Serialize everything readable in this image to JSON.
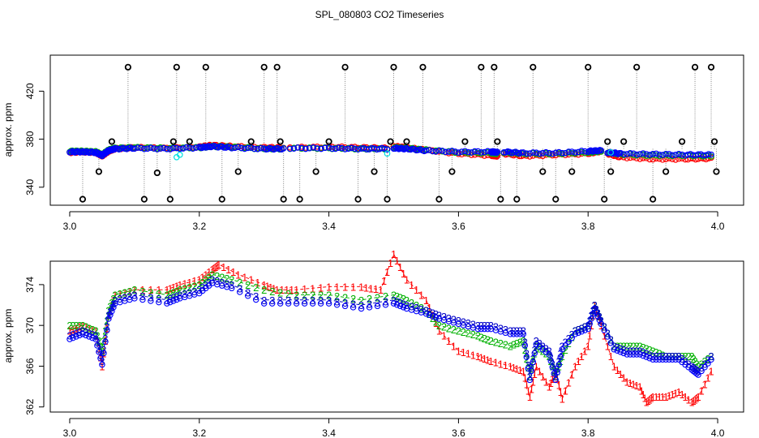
{
  "figure": {
    "title": "SPL_080803  CO2 Timeseries"
  },
  "chart_data": [
    {
      "type": "scatter",
      "panel": "top",
      "title": "",
      "xlabel": "",
      "ylabel": "approx. ppm",
      "xlim": [
        2.97,
        4.04
      ],
      "ylim": [
        325,
        450
      ],
      "x_ticks": [
        3.0,
        3.2,
        3.4,
        3.6,
        3.8,
        4.0
      ],
      "x_tick_labels": [
        "3.0",
        "3.2",
        "3.4",
        "3.6",
        "3.8",
        "4.0"
      ],
      "y_ticks": [
        340,
        380,
        420
      ],
      "y_tick_labels": [
        "340",
        "380",
        "420"
      ],
      "grid": false,
      "series": [
        {
          "name": "red",
          "color": "#ff0000",
          "marker": "circle",
          "segments": [
            {
              "x": [
                3.0,
                3.02,
                3.04,
                3.05,
                3.06,
                3.07,
                3.1,
                3.15,
                3.2,
                3.22,
                3.25,
                3.3,
                3.33
              ],
              "y": [
                369,
                369.5,
                369,
                366,
                370,
                372,
                373,
                372.5,
                373.5,
                375,
                374,
                373,
                373
              ]
            },
            {
              "x": [
                3.34,
                3.4,
                3.45,
                3.49
              ],
              "y": [
                373,
                373.5,
                373,
                372.5
              ]
            },
            {
              "x": [
                3.5,
                3.52,
                3.55,
                3.6,
                3.65,
                3.66
              ],
              "y": [
                374,
                373,
                371,
                368,
                366.5,
                366
              ]
            },
            {
              "x": [
                3.67,
                3.7,
                3.75,
                3.8,
                3.82
              ],
              "y": [
                368,
                366,
                367,
                368,
                370
              ]
            },
            {
              "x": [
                3.83,
                3.85,
                3.9,
                3.95,
                3.99
              ],
              "y": [
                368,
                365,
                363.5,
                363.5,
                364
              ]
            }
          ]
        },
        {
          "name": "green",
          "color": "#00b000",
          "marker": "circle",
          "segments": [
            {
              "x": [
                3.0,
                3.02,
                3.04,
                3.05,
                3.06,
                3.07,
                3.1,
                3.15,
                3.2,
                3.22,
                3.25,
                3.3,
                3.33
              ],
              "y": [
                370,
                370,
                369.5,
                367,
                371,
                372.5,
                373,
                372.5,
                373,
                374,
                373.5,
                372,
                372
              ]
            },
            {
              "x": [
                3.34,
                3.4,
                3.45,
                3.49
              ],
              "y": [
                372.5,
                372.5,
                372,
                372
              ]
            },
            {
              "x": [
                3.5,
                3.52,
                3.55,
                3.6,
                3.65,
                3.66
              ],
              "y": [
                373,
                372.5,
                371,
                369,
                368.5,
                368
              ]
            },
            {
              "x": [
                3.67,
                3.7,
                3.75,
                3.8,
                3.82
              ],
              "y": [
                369,
                368,
                368,
                369,
                370
              ]
            },
            {
              "x": [
                3.83,
                3.85,
                3.9,
                3.95,
                3.99
              ],
              "y": [
                369,
                367.5,
                366.5,
                366.5,
                366
              ]
            }
          ]
        },
        {
          "name": "blue",
          "color": "#0000ff",
          "marker": "circle",
          "segments": [
            {
              "x": [
                3.0,
                3.02,
                3.04,
                3.05,
                3.06,
                3.07,
                3.1,
                3.15,
                3.2,
                3.22,
                3.25,
                3.3,
                3.33
              ],
              "y": [
                369.5,
                369.5,
                369,
                366.5,
                370.5,
                372,
                372.5,
                372,
                373,
                374,
                373,
                372,
                372
              ]
            },
            {
              "x": [
                3.34,
                3.4,
                3.45,
                3.49
              ],
              "y": [
                372.5,
                372.5,
                372,
                372
              ]
            },
            {
              "x": [
                3.5,
                3.52,
                3.55,
                3.6,
                3.65,
                3.66
              ],
              "y": [
                372.5,
                372,
                370.5,
                369.5,
                369.5,
                369
              ]
            },
            {
              "x": [
                3.67,
                3.7,
                3.75,
                3.8,
                3.82
              ],
              "y": [
                369.5,
                368.5,
                368.5,
                370,
                370.5
              ]
            },
            {
              "x": [
                3.83,
                3.85,
                3.9,
                3.95,
                3.99
              ],
              "y": [
                369,
                368,
                367.5,
                367,
                367
              ]
            }
          ]
        },
        {
          "name": "cyan",
          "color": "#00e0e0",
          "marker": "circle",
          "points": {
            "x": [
              3.165,
              3.17,
              3.49,
              3.835
            ],
            "y": [
              365,
              367,
              368,
              369
            ]
          }
        },
        {
          "name": "outliers",
          "color": "#000000",
          "marker": "circle-thick",
          "points": {
            "x": [
              3.02,
              3.045,
              3.065,
              3.09,
              3.115,
              3.135,
              3.155,
              3.16,
              3.165,
              3.185,
              3.21,
              3.235,
              3.26,
              3.28,
              3.3,
              3.32,
              3.325,
              3.33,
              3.355,
              3.38,
              3.4,
              3.425,
              3.445,
              3.47,
              3.49,
              3.495,
              3.5,
              3.52,
              3.545,
              3.57,
              3.59,
              3.61,
              3.635,
              3.655,
              3.66,
              3.665,
              3.69,
              3.715,
              3.73,
              3.75,
              3.775,
              3.8,
              3.825,
              3.83,
              3.835,
              3.855,
              3.875,
              3.9,
              3.92,
              3.945,
              3.965,
              3.99,
              3.995,
              3.998
            ],
            "y": [
              330,
              353,
              378,
              440,
              330,
              352,
              330,
              378,
              440,
              378,
              440,
              330,
              353,
              378,
              440,
              440,
              378,
              330,
              330,
              353,
              378,
              440,
              330,
              353,
              330,
              378,
              440,
              378,
              440,
              330,
              353,
              378,
              440,
              440,
              378,
              330,
              330,
              440,
              353,
              330,
              353,
              440,
              330,
              378,
              353,
              378,
              440,
              330,
              353,
              378,
              440,
              440,
              378,
              353
            ]
          }
        }
      ]
    },
    {
      "type": "line",
      "panel": "bottom",
      "title": "",
      "xlabel": "",
      "ylabel": "approx. ppm",
      "xlim": [
        2.97,
        4.04
      ],
      "ylim": [
        361.5,
        376.3
      ],
      "x_ticks": [
        3.0,
        3.2,
        3.4,
        3.6,
        3.8,
        4.0
      ],
      "x_tick_labels": [
        "3.0",
        "3.2",
        "3.4",
        "3.6",
        "3.8",
        "4.0"
      ],
      "y_ticks": [
        362,
        366,
        370,
        374
      ],
      "y_tick_labels": [
        "362",
        "366",
        "370",
        "374"
      ],
      "grid": false,
      "series": [
        {
          "name": "1",
          "color": "#ff0000",
          "marker_label": "1",
          "x": [
            3.0,
            3.02,
            3.04,
            3.05,
            3.06,
            3.07,
            3.1,
            3.15,
            3.17,
            3.2,
            3.22,
            3.23,
            3.26,
            3.3,
            3.32,
            3.35,
            3.4,
            3.45,
            3.48,
            3.5,
            3.52,
            3.55,
            3.57,
            3.6,
            3.63,
            3.65,
            3.68,
            3.7,
            3.71,
            3.72,
            3.74,
            3.75,
            3.76,
            3.78,
            3.8,
            3.81,
            3.82,
            3.84,
            3.86,
            3.88,
            3.89,
            3.9,
            3.92,
            3.94,
            3.96,
            3.97,
            3.99
          ],
          "y": [
            369.5,
            370,
            369.5,
            366,
            371,
            373,
            373.5,
            373.5,
            374,
            374.5,
            375.5,
            376,
            375,
            374,
            373.5,
            373.5,
            373.8,
            373.8,
            373.5,
            377,
            374.5,
            372.5,
            369.5,
            367.5,
            367,
            366.5,
            366,
            365.5,
            363,
            366,
            364,
            365.5,
            362.8,
            366,
            368,
            372,
            370,
            366,
            364.5,
            364,
            362.5,
            363,
            363,
            363.5,
            362.5,
            363,
            365.5
          ]
        },
        {
          "name": "2",
          "color": "#00b000",
          "marker_label": "2",
          "x": [
            3.0,
            3.02,
            3.04,
            3.05,
            3.06,
            3.07,
            3.1,
            3.15,
            3.17,
            3.2,
            3.22,
            3.25,
            3.3,
            3.35,
            3.4,
            3.45,
            3.5,
            3.52,
            3.55,
            3.57,
            3.6,
            3.63,
            3.65,
            3.68,
            3.7,
            3.71,
            3.72,
            3.74,
            3.75,
            3.76,
            3.78,
            3.8,
            3.81,
            3.82,
            3.84,
            3.86,
            3.88,
            3.9,
            3.92,
            3.94,
            3.96,
            3.97,
            3.99
          ],
          "y": [
            370,
            370,
            369.5,
            367.5,
            371.5,
            373,
            373.5,
            373,
            373.5,
            374,
            375,
            374.5,
            373.5,
            373,
            373,
            372.5,
            373,
            372.5,
            371.5,
            370,
            369.5,
            369,
            368.5,
            368,
            368.5,
            365,
            368,
            367,
            365,
            367,
            369.5,
            370,
            372,
            370.5,
            368,
            368,
            368,
            367.5,
            367,
            367,
            367,
            366,
            367
          ]
        },
        {
          "name": "3",
          "color": "#0000c8",
          "marker_label": "3",
          "x": [
            3.0,
            3.02,
            3.04,
            3.05,
            3.06,
            3.07,
            3.1,
            3.15,
            3.17,
            3.2,
            3.22,
            3.25,
            3.3,
            3.35,
            3.4,
            3.45,
            3.5,
            3.52,
            3.55,
            3.57,
            3.6,
            3.63,
            3.65,
            3.68,
            3.7,
            3.71,
            3.72,
            3.74,
            3.75,
            3.76,
            3.78,
            3.8,
            3.81,
            3.82,
            3.84,
            3.86,
            3.88,
            3.9,
            3.92,
            3.94,
            3.96,
            3.97,
            3.99
          ],
          "y": [
            369,
            369.5,
            369,
            366.5,
            371,
            372.5,
            373,
            372.5,
            373,
            373.5,
            374.5,
            374,
            372.5,
            372.5,
            372.5,
            372,
            372.5,
            372,
            371.5,
            371,
            370.5,
            370,
            370,
            369.5,
            369.5,
            365,
            368.5,
            367.5,
            365,
            368,
            369.5,
            370,
            372,
            370.5,
            368,
            367.5,
            367.5,
            367,
            367,
            367,
            366,
            365.5,
            367
          ]
        }
      ]
    }
  ]
}
